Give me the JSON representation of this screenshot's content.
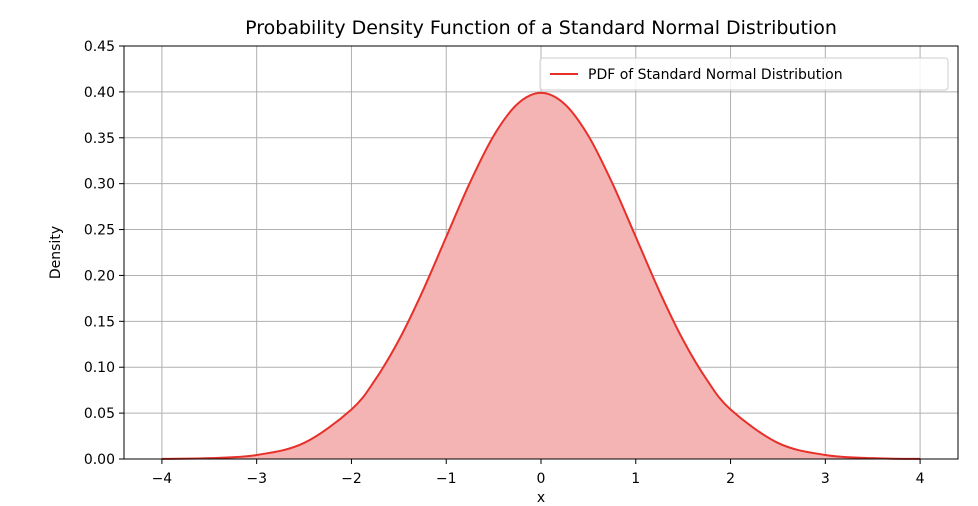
{
  "chart_data": {
    "type": "area",
    "title": "Probability Density Function of a Standard Normal Distribution",
    "xlabel": "x",
    "ylabel": "Density",
    "xlim": [
      -4.4,
      4.4
    ],
    "ylim": [
      0,
      0.45
    ],
    "x_ticks": [
      -4,
      -3,
      -2,
      -1,
      0,
      1,
      2,
      3,
      4
    ],
    "x_tick_labels": [
      "−4",
      "−3",
      "−2",
      "−1",
      "0",
      "1",
      "2",
      "3",
      "4"
    ],
    "y_ticks": [
      0.0,
      0.05,
      0.1,
      0.15,
      0.2,
      0.25,
      0.3,
      0.35,
      0.4,
      0.45
    ],
    "y_tick_labels": [
      "0.00",
      "0.05",
      "0.10",
      "0.15",
      "0.20",
      "0.25",
      "0.30",
      "0.35",
      "0.40",
      "0.45"
    ],
    "grid": true,
    "legend_position": "top-right",
    "series": [
      {
        "name": "PDF of Standard Normal Distribution",
        "color": "#e8302a",
        "fill_color": "#f4b4b4",
        "x": [
          -4.0,
          -3.5,
          -3.0,
          -2.5,
          -2.0,
          -1.75,
          -1.5,
          -1.25,
          -1.0,
          -0.75,
          -0.5,
          -0.25,
          0.0,
          0.25,
          0.5,
          0.75,
          1.0,
          1.25,
          1.5,
          1.75,
          2.0,
          2.5,
          3.0,
          3.5,
          4.0
        ],
        "y": [
          0.0001,
          0.0009,
          0.0044,
          0.0175,
          0.054,
          0.0863,
          0.1295,
          0.1826,
          0.242,
          0.3011,
          0.3521,
          0.3867,
          0.3989,
          0.3867,
          0.3521,
          0.3011,
          0.242,
          0.1826,
          0.1295,
          0.0863,
          0.054,
          0.0175,
          0.0044,
          0.0009,
          0.0001
        ]
      }
    ]
  }
}
